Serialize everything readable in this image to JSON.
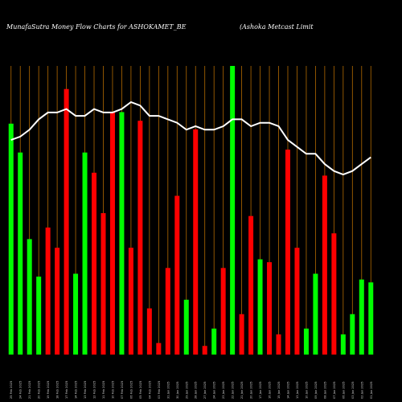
{
  "chart_data": {
    "type": "bar",
    "title_left": "MunafaSutra  Money Flow  Charts for ASHOKAMET_BE",
    "title_right": "(Ashoka  Metcast Limit",
    "ylim": [
      0,
      100
    ],
    "grid": true,
    "colors": {
      "background": "#000000",
      "grid": "#b36a00",
      "up": "#00ff00",
      "down": "#ff0000",
      "line": "#ffffff"
    },
    "bars": [
      {
        "date": "25 Feb 2025",
        "color": "up",
        "value": 80
      },
      {
        "date": "24 Feb 2025",
        "color": "up",
        "value": 70
      },
      {
        "date": "21 Feb 2025",
        "color": "up",
        "value": 40
      },
      {
        "date": "20 Feb 2025",
        "color": "up",
        "value": 27
      },
      {
        "date": "19 Feb 2025",
        "color": "down",
        "value": 44
      },
      {
        "date": "18 Feb 2025",
        "color": "down",
        "value": 37
      },
      {
        "date": "17 Feb 2025",
        "color": "down",
        "value": 92
      },
      {
        "date": "14 Feb 2025",
        "color": "up",
        "value": 28
      },
      {
        "date": "13 Feb 2025",
        "color": "up",
        "value": 70
      },
      {
        "date": "12 Feb 2025",
        "color": "down",
        "value": 63
      },
      {
        "date": "11 Feb 2025",
        "color": "down",
        "value": 49
      },
      {
        "date": "10 Feb 2025",
        "color": "down",
        "value": 84
      },
      {
        "date": "07 Feb 2025",
        "color": "up",
        "value": 84
      },
      {
        "date": "06 Feb 2025",
        "color": "down",
        "value": 37
      },
      {
        "date": "05 Feb 2025",
        "color": "down",
        "value": 81
      },
      {
        "date": "04 Feb 2025",
        "color": "down",
        "value": 16
      },
      {
        "date": "03 Feb 2025",
        "color": "down",
        "value": 4
      },
      {
        "date": "31 Jan 2025",
        "color": "down",
        "value": 30
      },
      {
        "date": "30 Jan 2025",
        "color": "down",
        "value": 55
      },
      {
        "date": "29 Jan 2025",
        "color": "up",
        "value": 19
      },
      {
        "date": "28 Jan 2025",
        "color": "down",
        "value": 78
      },
      {
        "date": "27 Jan 2025",
        "color": "down",
        "value": 3
      },
      {
        "date": "24 Jan 2025",
        "color": "up",
        "value": 9
      },
      {
        "date": "23 Jan 2025",
        "color": "down",
        "value": 30
      },
      {
        "date": "22 Jan 2025",
        "color": "up",
        "value": 100
      },
      {
        "date": "21 Jan 2025",
        "color": "down",
        "value": 14
      },
      {
        "date": "20 Jan 2025",
        "color": "down",
        "value": 48
      },
      {
        "date": "17 Jan 2025",
        "color": "up",
        "value": 33
      },
      {
        "date": "16 Jan 2025",
        "color": "down",
        "value": 32
      },
      {
        "date": "15 Jan 2025",
        "color": "down",
        "value": 7
      },
      {
        "date": "14 Jan 2025",
        "color": "down",
        "value": 71
      },
      {
        "date": "13 Jan 2025",
        "color": "down",
        "value": 37
      },
      {
        "date": "10 Jan 2025",
        "color": "up",
        "value": 9
      },
      {
        "date": "09 Jan 2025",
        "color": "up",
        "value": 28
      },
      {
        "date": "08 Jan 2025",
        "color": "down",
        "value": 62
      },
      {
        "date": "07 Jan 2025",
        "color": "down",
        "value": 42
      },
      {
        "date": "06 Jan 2025",
        "color": "up",
        "value": 7
      },
      {
        "date": "03 Jan 2025",
        "color": "up",
        "value": 14
      },
      {
        "date": "02 Jan 2025",
        "color": "up",
        "value": 26
      },
      {
        "date": "01 Jan 2025",
        "color": "up",
        "value": 25
      }
    ],
    "line_values": [
      78,
      79,
      81,
      84,
      86,
      86,
      87,
      85,
      85,
      87,
      86,
      86,
      87,
      89,
      88,
      85,
      85,
      84,
      83,
      81,
      82,
      81,
      81,
      82,
      84,
      84,
      82,
      83,
      83,
      82,
      78,
      76,
      74,
      74,
      71,
      69,
      68,
      69,
      71,
      73
    ]
  }
}
